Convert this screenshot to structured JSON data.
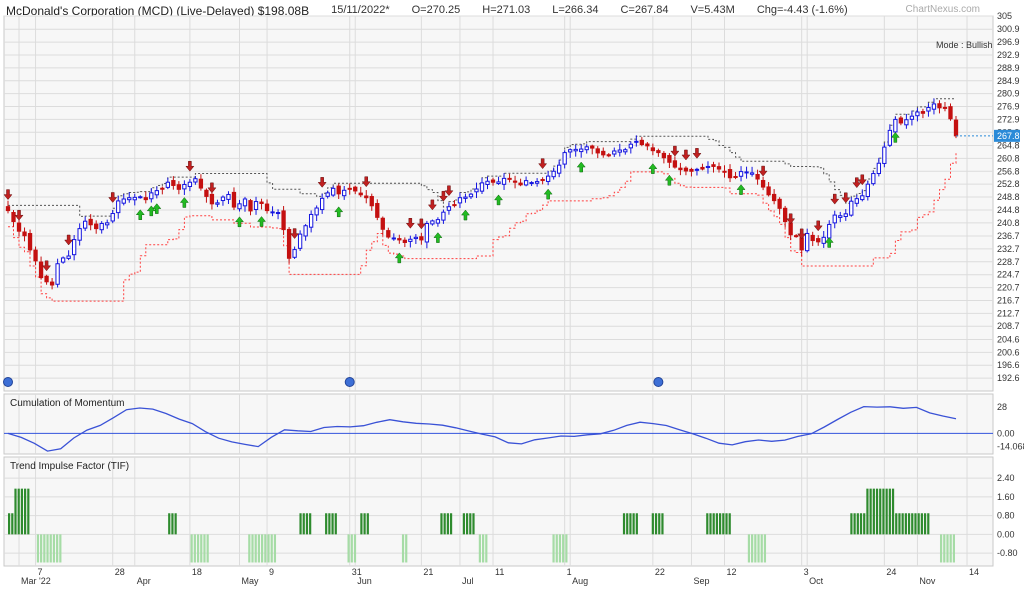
{
  "header": {
    "title": "McDonald's Corporation (MCD) (Live-Delayed) $198.08B",
    "date": "15/11/2022*",
    "open": "O=270.25",
    "high": "H=271.03",
    "low": "L=266.34",
    "close": "C=267.84",
    "volume": "V=5.43M",
    "change": "Chg=-4.43 (-1.6%)"
  },
  "brand": "ChartNexus.com",
  "mode_label": "Mode : Bullish",
  "last_price_tag": "267.8",
  "colors": {
    "bull": "#1515e0",
    "bear": "#c41010",
    "tif_pos": "#2e8b2e",
    "tif_neg": "#a6dca6",
    "momentum": "#3a52d6",
    "resistance": "#555555",
    "support": "#ff4040",
    "buy_arrow": "#22bb22",
    "sell_arrow": "#c02020",
    "grid": "#dcdcdc"
  },
  "chart_data": [
    {
      "type": "candlestick",
      "ylim": [
        188.6,
        305
      ],
      "yticks": [
        "305",
        "300.9",
        "296.9",
        "292.9",
        "288.9",
        "284.9",
        "280.9",
        "276.9",
        "272.9",
        "268.9",
        "264.8",
        "260.8",
        "256.8",
        "252.8",
        "248.8",
        "244.8",
        "240.8",
        "236.7",
        "232.7",
        "228.7",
        "224.7",
        "220.7",
        "216.7",
        "212.7",
        "208.7",
        "204.6",
        "200.6",
        "196.6",
        "192.6"
      ],
      "x_labels": [
        {
          "label": "7",
          "i": 5
        },
        {
          "label": "Mar '22",
          "i": 2
        },
        {
          "label": "28",
          "i": 19
        },
        {
          "label": "Apr",
          "i": 23
        },
        {
          "label": "18",
          "i": 33
        },
        {
          "label": "May",
          "i": 42
        },
        {
          "label": "9",
          "i": 47
        },
        {
          "label": "31",
          "i": 62
        },
        {
          "label": "Jun",
          "i": 63
        },
        {
          "label": "21",
          "i": 75
        },
        {
          "label": "Jul",
          "i": 82
        },
        {
          "label": "11",
          "i": 88
        },
        {
          "label": "1",
          "i": 101
        },
        {
          "label": "Aug",
          "i": 102
        },
        {
          "label": "22",
          "i": 117
        },
        {
          "label": "Sep",
          "i": 124
        },
        {
          "label": "12",
          "i": 130
        },
        {
          "label": "3",
          "i": 144
        },
        {
          "label": "Oct",
          "i": 145
        },
        {
          "label": "24",
          "i": 159
        },
        {
          "label": "Nov",
          "i": 165
        },
        {
          "label": "14",
          "i": 174
        }
      ],
      "trend": "bullish",
      "close": [
        244.6,
        241.2,
        238.2,
        236.8,
        232.4,
        229,
        223.8,
        222.5,
        221.5,
        228.1,
        229.9,
        230.5,
        235.6,
        239,
        241.3,
        240.2,
        239,
        240.6,
        240.8,
        243.7,
        247.6,
        248.2,
        248.6,
        248.7,
        248.9,
        248,
        250.1,
        250.8,
        251.4,
        253.4,
        252.4,
        251.2,
        252.7,
        253.4,
        254.5,
        251.6,
        249,
        246.7,
        247,
        248.8,
        249.6,
        245.7,
        246.7,
        248.2,
        244.5,
        247.4,
        246.8,
        244.6,
        244.2,
        244,
        238.7,
        229.8,
        232.5,
        237.3,
        239.9,
        243.4,
        245.4,
        248.4,
        250.1,
        251.5,
        249.8,
        250.9,
        251.5,
        250.7,
        249.5,
        248.6,
        246.1,
        242.5,
        238.8,
        236.4,
        236.1,
        235.5,
        234.7,
        235.7,
        236.3,
        235.5,
        240.6,
        241.4,
        241.8,
        244.1,
        245.8,
        246.3,
        248.6,
        248.8,
        249.7,
        251.3,
        253.2,
        253.7,
        253.4,
        253.5,
        254.6,
        254.3,
        253.4,
        252.6,
        253.9,
        253.3,
        253.6,
        254.2,
        255.3,
        256.8,
        258.7,
        262.6,
        263.5,
        263.6,
        263.7,
        264.4,
        264,
        262.5,
        261.9,
        261.6,
        263.1,
        263.4,
        263.5,
        265.2,
        266.1,
        265.1,
        264.7,
        263.2,
        262.6,
        261,
        259.6,
        258.1,
        257.3,
        256.9,
        256.8,
        257.4,
        257.5,
        258.3,
        258.3,
        257.5,
        256.6,
        254.8,
        254.9,
        256.7,
        256.6,
        256.3,
        254.4,
        251.9,
        249.5,
        247.7,
        245.3,
        241.2,
        237.1,
        236.6,
        232.4,
        237.5,
        235.3,
        234.9,
        236.3,
        240.3,
        243.2,
        243,
        243.6,
        247.5,
        248.3,
        249.2,
        252.8,
        256.1,
        259.3,
        264.3,
        269.5,
        272.9,
        271.8,
        272.8,
        273.9,
        275.2,
        274.8,
        276.6,
        277.7,
        276.5,
        276.6,
        273.1,
        267.8
      ],
      "buy_signals": [
        24,
        26,
        27,
        32,
        42,
        46,
        60,
        71,
        78,
        83,
        89,
        98,
        104,
        117,
        120,
        133,
        149,
        161,
        175
      ],
      "sell_signals": [
        0,
        2,
        7,
        11,
        19,
        33,
        37,
        52,
        57,
        65,
        73,
        75,
        77,
        79,
        80,
        97,
        121,
        123,
        125,
        137,
        142,
        144,
        147,
        150,
        152,
        154,
        155
      ]
    },
    {
      "type": "line",
      "title": "Cumulation of Momentum",
      "yticks": [
        "28",
        "0.00",
        "-14.068"
      ],
      "ylim": [
        -22,
        42
      ],
      "values": [
        0,
        -4.3,
        -10.6,
        -18.9,
        -16.4,
        -4.9,
        3.5,
        8.5,
        16.6,
        25.3,
        27.1,
        25.9,
        21.2,
        15.2,
        10.4,
        1.8,
        -5.1,
        -9.1,
        -11.8,
        -14.1,
        -4.2,
        3.8,
        2.7,
        2,
        6.3,
        7.3,
        6.9,
        8.2,
        11.8,
        14.6,
        12.3,
        10.8,
        10,
        8.7,
        6,
        2.5,
        -0.8,
        -3.8,
        -10,
        -11.2,
        -6.9,
        -4.9,
        -2.8,
        -3.2,
        -1.5,
        -0.5,
        3.3,
        8.5,
        11.9,
        10.4,
        8.4,
        3.8,
        -0.4,
        -5.1,
        -10.5,
        -12.3,
        -8.9,
        -7.1,
        -8.4,
        -7.2,
        -3.2,
        -0.5,
        6.8,
        14.8,
        22.5,
        28.6,
        28,
        28.4,
        26.8,
        27.7,
        21.8,
        18.5,
        15.7
      ]
    },
    {
      "type": "bar",
      "title": "Trend Impulse Factor (TIF)",
      "yticks": [
        "2.40",
        "1.60",
        "0.80",
        "0.00",
        "-0.80"
      ],
      "ylim": [
        -1.35,
        3.3
      ],
      "values": [
        1,
        1,
        2,
        2,
        2,
        2,
        2,
        0,
        0,
        -1,
        -1,
        -1,
        -1,
        -1,
        -1,
        -1,
        -1,
        0,
        0,
        0,
        0,
        0,
        0,
        0,
        0,
        0,
        0,
        0,
        0,
        0,
        0,
        0,
        0,
        0,
        0,
        0,
        0,
        0,
        0,
        0,
        0,
        0,
        0,
        0,
        0,
        0,
        0,
        0,
        0,
        0,
        1,
        1,
        1,
        0,
        0,
        0,
        0,
        -1,
        -1,
        -1,
        -1,
        -1,
        -1,
        0,
        0,
        0,
        0,
        0,
        0,
        0,
        0,
        0,
        0,
        0,
        0,
        -1,
        -1,
        -1,
        -1,
        -1,
        -1,
        -1,
        -1,
        -1,
        0,
        0,
        0,
        0,
        0,
        0,
        0,
        1,
        1,
        1,
        1,
        0,
        0,
        0,
        0,
        1,
        1,
        1,
        1,
        0,
        0,
        0,
        -1,
        -1,
        -1,
        0,
        1,
        1,
        1,
        0,
        0,
        0,
        0,
        0,
        0,
        0,
        0,
        0,
        0,
        -1,
        -1,
        0,
        0,
        0,
        0,
        0,
        0,
        0,
        0,
        0,
        0,
        1,
        1,
        1,
        1,
        0,
        0,
        0,
        1,
        1,
        1,
        1,
        0,
        -1,
        -1,
        -1,
        0,
        0,
        0,
        0,
        0,
        0,
        0,
        0,
        0,
        0,
        0,
        0,
        0,
        0,
        0,
        0,
        0,
        0,
        0,
        0,
        -1,
        -1,
        -1,
        -1,
        -1,
        0,
        0,
        0,
        0,
        0,
        0,
        0,
        0,
        0,
        0,
        0,
        0,
        0,
        0,
        0,
        0,
        0,
        1,
        1,
        1,
        1,
        1,
        0,
        0,
        0,
        0,
        1,
        1,
        1,
        1,
        0,
        0,
        0,
        0,
        0,
        0,
        0,
        0,
        0,
        0,
        0,
        0,
        0,
        1,
        1,
        1,
        1,
        1,
        1,
        1,
        1,
        0,
        0,
        0,
        0,
        0,
        -1,
        -1,
        -1,
        -1,
        -1,
        -1,
        0,
        0,
        0,
        0,
        0,
        0,
        0,
        0,
        0,
        0,
        0,
        0,
        0,
        0,
        0,
        0,
        0,
        0,
        0,
        0,
        0,
        0,
        0,
        0,
        0,
        0,
        1,
        1,
        1,
        1,
        1,
        2,
        2,
        2,
        2,
        2,
        2,
        2,
        2,
        2,
        1,
        1,
        1,
        1,
        1,
        1,
        1,
        1,
        1,
        1,
        1,
        0,
        0,
        0,
        -1,
        -1,
        -1,
        -1,
        -1
      ]
    }
  ],
  "panels": {
    "momentum_label": "Cumulation of Momentum",
    "tif_label": "Trend Impulse Factor (TIF)"
  }
}
